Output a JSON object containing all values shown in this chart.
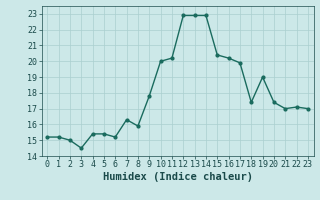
{
  "x": [
    0,
    1,
    2,
    3,
    4,
    5,
    6,
    7,
    8,
    9,
    10,
    11,
    12,
    13,
    14,
    15,
    16,
    17,
    18,
    19,
    20,
    21,
    22,
    23
  ],
  "y": [
    15.2,
    15.2,
    15.0,
    14.5,
    15.4,
    15.4,
    15.2,
    16.3,
    15.9,
    17.8,
    20.0,
    20.2,
    22.9,
    22.9,
    22.9,
    20.4,
    20.2,
    19.9,
    17.4,
    19.0,
    17.4,
    17.0,
    17.1,
    17.0
  ],
  "line_color": "#1a6b5e",
  "marker": "o",
  "markersize": 2.0,
  "linewidth": 1.0,
  "bg_color": "#cce8e8",
  "grid_color": "#aacfcf",
  "xlabel": "Humidex (Indice chaleur)",
  "xlim": [
    -0.5,
    23.5
  ],
  "ylim": [
    14,
    23.5
  ],
  "yticks": [
    14,
    15,
    16,
    17,
    18,
    19,
    20,
    21,
    22,
    23
  ],
  "xticks": [
    0,
    1,
    2,
    3,
    4,
    5,
    6,
    7,
    8,
    9,
    10,
    11,
    12,
    13,
    14,
    15,
    16,
    17,
    18,
    19,
    20,
    21,
    22,
    23
  ],
  "xtick_labels": [
    "0",
    "1",
    "2",
    "3",
    "4",
    "5",
    "6",
    "7",
    "8",
    "9",
    "10",
    "11",
    "12",
    "13",
    "14",
    "15",
    "16",
    "17",
    "18",
    "19",
    "20",
    "21",
    "22",
    "23"
  ],
  "tick_fontsize": 6.0,
  "xlabel_fontsize": 7.5,
  "tick_color": "#1a4a4a",
  "grid_linewidth": 0.5
}
